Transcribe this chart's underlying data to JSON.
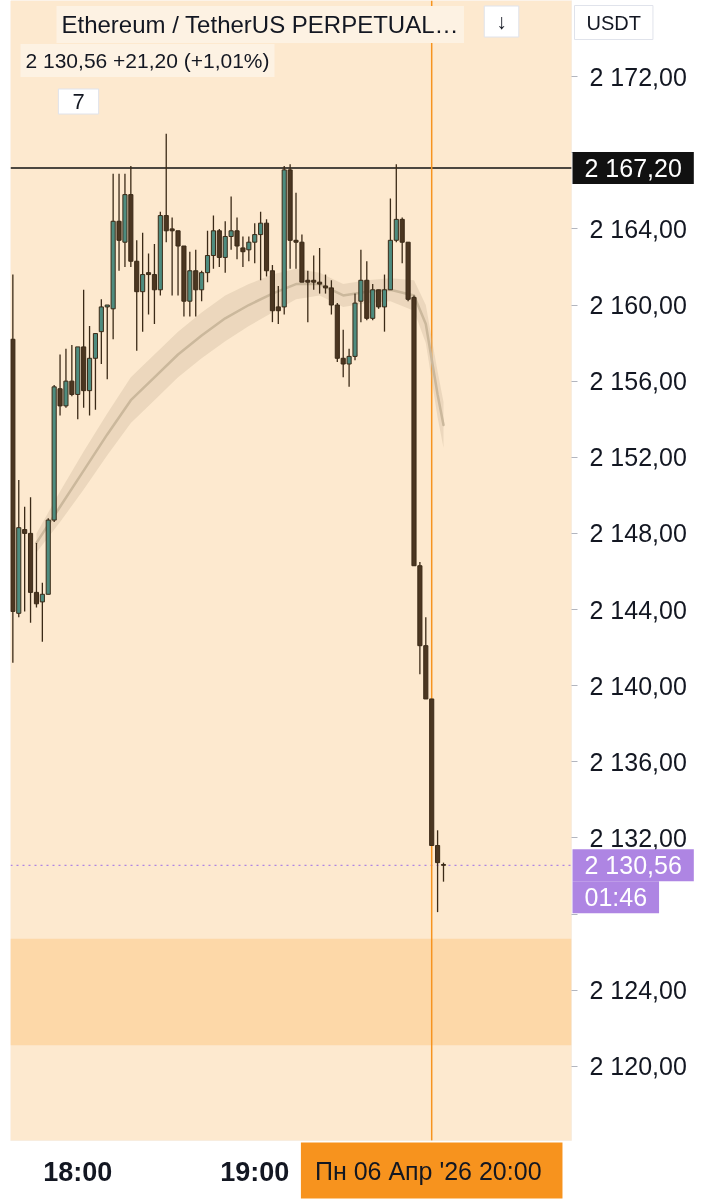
{
  "chart_data": {
    "type": "candlestick",
    "title": "Ethereum / TetherUS PERPETUAL…",
    "subtitle": "2 130,56 +21,20 (+1,01%)",
    "annotations": [
      "↓",
      "USDT",
      "7",
      "01:46"
    ],
    "x": [
      17.6333,
      17.6667,
      17.7,
      17.7333,
      17.7667,
      17.8,
      17.8333,
      17.8667,
      17.9,
      17.9333,
      17.9667,
      18,
      18.0333,
      18.0667,
      18.1,
      18.1333,
      18.1667,
      18.2,
      18.2333,
      18.2667,
      18.3,
      18.3333,
      18.3667,
      18.4,
      18.4333,
      18.4667,
      18.5,
      18.5333,
      18.5667,
      18.6,
      18.6333,
      18.6667,
      18.7,
      18.7333,
      18.7667,
      18.8,
      18.8333,
      18.8667,
      18.9,
      18.9333,
      18.9667,
      19,
      19.0333,
      19.0667,
      19.1,
      19.1333,
      19.1667,
      19.2,
      19.2333,
      19.2667,
      19.3,
      19.3333,
      19.3667,
      19.4,
      19.4333,
      19.4667,
      19.5,
      19.5333,
      19.5667,
      19.6,
      19.6333,
      19.6667,
      19.7,
      19.7333,
      19.7667,
      19.8,
      19.8333,
      19.8667,
      19.9,
      19.9333,
      19.9667,
      20,
      20.0333,
      20.0667
    ],
    "ohlc": [
      [
        2158.2,
        2161.6,
        2141.2,
        2143.9
      ],
      [
        2143.8,
        2150.8,
        2143.6,
        2148.3
      ],
      [
        2148.2,
        2149.4,
        2143.9,
        2148.0
      ],
      [
        2148.0,
        2149.9,
        2143.3,
        2144.9
      ],
      [
        2144.9,
        2147.5,
        2144.1,
        2144.3
      ],
      [
        2144.4,
        2145.4,
        2142.3,
        2144.8
      ],
      [
        2144.8,
        2148.8,
        2144.8,
        2148.7
      ],
      [
        2148.7,
        2155.8,
        2148.6,
        2155.7
      ],
      [
        2155.6,
        2157.4,
        2154.2,
        2154.7
      ],
      [
        2154.7,
        2157.7,
        2154.6,
        2156.0
      ],
      [
        2156.0,
        2157.9,
        2155.2,
        2155.3
      ],
      [
        2155.3,
        2157.8,
        2154.0,
        2157.8
      ],
      [
        2157.8,
        2160.8,
        2154.6,
        2155.5
      ],
      [
        2155.5,
        2158.9,
        2154.2,
        2157.2
      ],
      [
        2157.2,
        2158.5,
        2154.5,
        2158.5
      ],
      [
        2158.6,
        2160.3,
        2156.9,
        2159.9
      ],
      [
        2159.9,
        2160.0,
        2156.1,
        2160.0
      ],
      [
        2159.8,
        2166.9,
        2158.2,
        2164.4
      ],
      [
        2164.4,
        2166.9,
        2161.8,
        2163.4
      ],
      [
        2163.3,
        2166.9,
        2162.0,
        2165.8
      ],
      [
        2165.8,
        2167.3,
        2162.0,
        2162.3
      ],
      [
        2162.3,
        2163.4,
        2157.6,
        2160.7
      ],
      [
        2160.7,
        2163.8,
        2158.6,
        2161.6
      ],
      [
        2161.7,
        2162.7,
        2159.5,
        2161.6
      ],
      [
        2161.6,
        2163.2,
        2159.0,
        2160.8
      ],
      [
        2160.8,
        2164.9,
        2160.5,
        2164.7
      ],
      [
        2164.7,
        2169.0,
        2163.3,
        2163.9
      ],
      [
        2164.0,
        2164.6,
        2160.5,
        2163.9
      ],
      [
        2163.9,
        2163.9,
        2160.5,
        2163.1
      ],
      [
        2163.1,
        2163.1,
        2159.4,
        2160.2
      ],
      [
        2160.2,
        2162.8,
        2159.4,
        2161.8
      ],
      [
        2161.8,
        2162.9,
        2159.4,
        2160.8
      ],
      [
        2160.8,
        2161.8,
        2160.2,
        2161.7
      ],
      [
        2161.7,
        2163.9,
        2161.2,
        2162.6
      ],
      [
        2162.6,
        2164.7,
        2161.9,
        2163.9
      ],
      [
        2163.9,
        2164.0,
        2162.0,
        2162.5
      ],
      [
        2162.5,
        2164.4,
        2161.7,
        2163.6
      ],
      [
        2163.6,
        2165.7,
        2162.9,
        2163.9
      ],
      [
        2163.9,
        2164.6,
        2162.4,
        2163.1
      ],
      [
        2163.0,
        2163.6,
        2162.0,
        2162.8
      ],
      [
        2162.9,
        2163.6,
        2162.3,
        2163.3
      ],
      [
        2163.3,
        2164.3,
        2162.2,
        2163.7
      ],
      [
        2163.7,
        2164.9,
        2161.3,
        2164.3
      ],
      [
        2164.3,
        2164.5,
        2161.5,
        2161.8
      ],
      [
        2161.8,
        2162.1,
        2159.1,
        2159.7
      ],
      [
        2159.9,
        2161.0,
        2159.0,
        2159.7
      ],
      [
        2159.9,
        2167.3,
        2159.5,
        2167.1
      ],
      [
        2167.1,
        2167.4,
        2161.9,
        2163.4
      ],
      [
        2163.4,
        2165.9,
        2161.9,
        2163.3
      ],
      [
        2163.3,
        2163.7,
        2161.2,
        2161.2
      ],
      [
        2161.3,
        2161.8,
        2159.1,
        2161.2
      ],
      [
        2161.3,
        2162.6,
        2160.8,
        2161.2
      ],
      [
        2161.2,
        2163.0,
        2160.6,
        2161.1
      ],
      [
        2161.0,
        2161.6,
        2160.6,
        2160.9
      ],
      [
        2160.9,
        2161.3,
        2159.5,
        2160.0
      ],
      [
        2160.0,
        2160.1,
        2157.0,
        2157.2
      ],
      [
        2157.2,
        2158.7,
        2156.2,
        2156.9
      ],
      [
        2156.9,
        2157.7,
        2155.7,
        2157.3
      ],
      [
        2157.3,
        2160.6,
        2157.1,
        2160.1
      ],
      [
        2160.2,
        2162.9,
        2159.1,
        2161.3
      ],
      [
        2161.3,
        2162.3,
        2159.2,
        2159.3
      ],
      [
        2159.3,
        2161.1,
        2159.2,
        2160.8
      ],
      [
        2160.8,
        2160.8,
        2159.8,
        2159.9
      ],
      [
        2159.9,
        2161.6,
        2158.6,
        2160.8
      ],
      [
        2160.8,
        2165.6,
        2160.8,
        2163.4
      ],
      [
        2163.4,
        2167.4,
        2163.3,
        2164.5
      ],
      [
        2164.5,
        2164.6,
        2162.2,
        2163.3
      ],
      [
        2163.3,
        2163.3,
        2160.2,
        2160.3
      ],
      [
        2160.4,
        2160.5,
        2146.3,
        2146.3
      ],
      [
        2146.3,
        2146.5,
        2140.6,
        2142.1
      ],
      [
        2142.1,
        2143.6,
        2139.3,
        2139.3
      ],
      [
        2139.3,
        2139.3,
        2131.6,
        2131.6
      ],
      [
        2131.6,
        2132.4,
        2128.1,
        2130.7
      ],
      [
        2130.6,
        2130.7,
        2129.7,
        2130.56
      ]
    ],
    "colors": [
      "#4b3621",
      "#4e8c7f",
      "#4b3621",
      "#4b3621",
      "#4b3621",
      "#4e8c7f",
      "#4e8c7f",
      "#4e8c7f",
      "#4b3621",
      "#4e8c7f",
      "#4b3621",
      "#4e8c7f",
      "#4b3621",
      "#4e8c7f",
      "#4e8c7f",
      "#4e8c7f",
      "#4e8c7f",
      "#4e8c7f",
      "#4b3621",
      "#4e8c7f",
      "#4b3621",
      "#4b3621",
      "#4e8c7f",
      "#4b3621",
      "#4b3621",
      "#4e8c7f",
      "#4b3621",
      "#4b3621",
      "#4b3621",
      "#4b3621",
      "#4e8c7f",
      "#4b3621",
      "#4e8c7f",
      "#4e8c7f",
      "#4e8c7f",
      "#4b3621",
      "#4e8c7f",
      "#4e8c7f",
      "#4b3621",
      "#4b3621",
      "#4e8c7f",
      "#4e8c7f",
      "#4e8c7f",
      "#4b3621",
      "#4b3621",
      "#4b3621",
      "#4e8c7f",
      "#4b3621",
      "#4b3621",
      "#4b3621",
      "#4b3621",
      "#4b3621",
      "#4b3621",
      "#4b3621",
      "#4b3621",
      "#4b3621",
      "#4b3621",
      "#4e8c7f",
      "#4e8c7f",
      "#4e8c7f",
      "#4b3621",
      "#4e8c7f",
      "#4b3621",
      "#4e8c7f",
      "#4e8c7f",
      "#4e8c7f",
      "#4b3621",
      "#4b3621",
      "#4b3621",
      "#4b3621",
      "#4b3621",
      "#4b3621",
      "#4b3621",
      "#4b3621"
    ],
    "series": [
      {
        "type": "line",
        "color": "#cbb89c",
        "x": [
          17.7667,
          17.9,
          18.0333,
          18.1667,
          18.3,
          18.4333,
          18.5667,
          18.7,
          18.8333,
          18.9667,
          19.1,
          19.2333,
          19.3667,
          19.5,
          19.6333,
          19.7667,
          19.9,
          19.9667,
          20.0333,
          20.0667
        ],
        "values": [
          2147.5,
          2149.4,
          2151.3,
          2153.2,
          2155.0,
          2156.2,
          2157.4,
          2158.4,
          2159.3,
          2160.0,
          2160.6,
          2161.1,
          2161.1,
          2160.5,
          2160.7,
          2160.8,
          2160.5,
          2159.0,
          2155.3,
          2153.7
        ],
        "lower": [
          2147.0,
          2148.6,
          2150.3,
          2152.1,
          2153.8,
          2155.0,
          2156.2,
          2157.2,
          2158.1,
          2158.9,
          2159.6,
          2160.3,
          2160.5,
          2159.9,
          2160.1,
          2160.2,
          2159.7,
          2158.0,
          2154.1,
          2152.5
        ],
        "upper": [
          2148.0,
          2150.2,
          2152.3,
          2154.3,
          2156.2,
          2157.4,
          2158.6,
          2159.6,
          2160.5,
          2161.1,
          2161.6,
          2161.9,
          2161.7,
          2161.1,
          2161.3,
          2161.4,
          2161.3,
          2160.0,
          2156.5,
          2154.9
        ]
      }
    ],
    "xlim": [
      17.62,
      20.79
    ],
    "ylim": [
      2116.1,
      2176.0
    ],
    "xticks": [
      {
        "value": 18,
        "label": "18:00"
      },
      {
        "value": 19,
        "label": "19:00"
      },
      {
        "value": 20,
        "label": null
      }
    ],
    "yticks": [
      {
        "value": 2120,
        "label": "2 120,00"
      },
      {
        "value": 2124,
        "label": "2 124,00"
      },
      {
        "value": 2128,
        "label": null
      },
      {
        "value": 2132,
        "label": "2 132,00"
      },
      {
        "value": 2136,
        "label": "2 136,00"
      },
      {
        "value": 2140,
        "label": "2 140,00"
      },
      {
        "value": 2144,
        "label": "2 144,00"
      },
      {
        "value": 2148,
        "label": "2 148,00"
      },
      {
        "value": 2152,
        "label": "2 152,00"
      },
      {
        "value": 2156,
        "label": "2 156,00"
      },
      {
        "value": 2160,
        "label": "2 160,00"
      },
      {
        "value": 2164,
        "label": "2 164,00"
      },
      {
        "value": 2168,
        "label": null
      },
      {
        "value": 2172,
        "label": "2 172,00"
      }
    ],
    "ref_lines": [
      {
        "axis": "y",
        "value": 2167.2,
        "label": "2 167,20",
        "color": "#111111"
      },
      {
        "axis": "y",
        "value": 2130.56,
        "label": "2 130,56",
        "color": "#ae85e3",
        "line_style": "dotted"
      },
      {
        "axis": "x",
        "value": 20,
        "label": "Пн 06 Апр '26  20:00",
        "color": "#f7931e"
      }
    ],
    "bands": [
      {
        "axis": "y",
        "from": 2121.1,
        "to": 2126.7,
        "color": "#fdd8a8"
      }
    ]
  }
}
